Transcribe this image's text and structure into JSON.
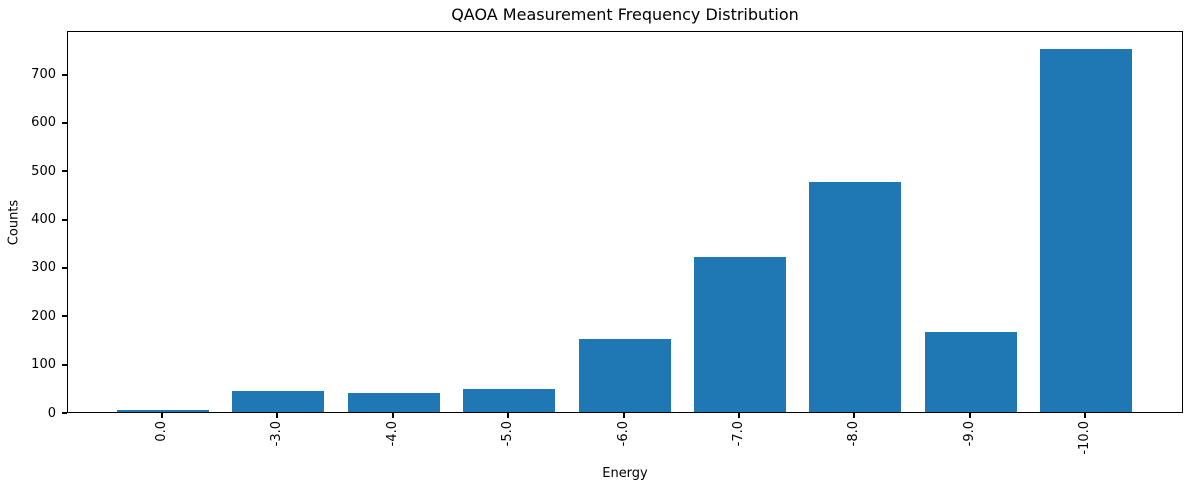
{
  "chart_data": {
    "type": "bar",
    "title": "QAOA Measurement Frequency Distribution",
    "xlabel": "Energy",
    "ylabel": "Counts",
    "categories": [
      "0.0",
      "-3.0",
      "-4.0",
      "-5.0",
      "-6.0",
      "-7.0",
      "-8.0",
      "-9.0",
      "-10.0"
    ],
    "values": [
      5,
      44,
      39,
      47,
      150,
      321,
      476,
      165,
      750
    ],
    "yticks": [
      0,
      100,
      200,
      300,
      400,
      500,
      600,
      700
    ],
    "ylim": [
      0,
      790
    ],
    "bar_color": "#1f77b4",
    "grid": false,
    "legend_position": "none",
    "background_color": "#ffffff",
    "text_color": "#000000"
  }
}
